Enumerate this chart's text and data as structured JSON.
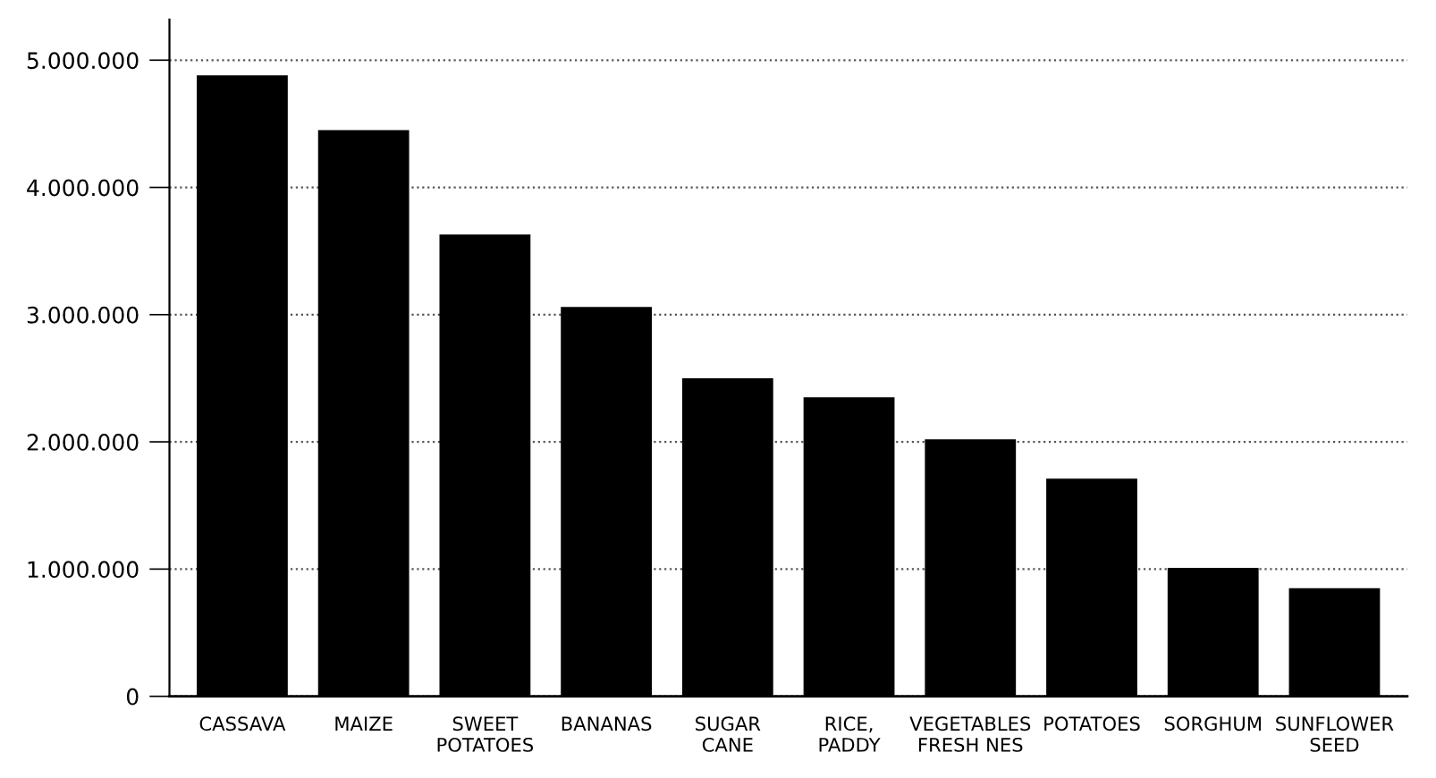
{
  "chart_data": {
    "type": "bar",
    "categories": [
      "CASSAVA",
      "MAIZE",
      "SWEET\nPOTATOES",
      "BANANAS",
      "SUGAR\nCANE",
      "RICE,\nPADDY",
      "VEGETABLES\nFRESH NES",
      "POTATOES",
      "SORGHUM",
      "SUNFLOWER\nSEED"
    ],
    "values": [
      4880000,
      4450000,
      3630000,
      3060000,
      2500000,
      2350000,
      2020000,
      1710000,
      1010000,
      850000
    ],
    "color": "#000000",
    "ylim": [
      0,
      5320000
    ],
    "yticks": [
      0,
      {
        "value": 1000000,
        "label": "1.000.000"
      },
      {
        "value": 2000000,
        "label": "2.000.000"
      },
      {
        "value": 3000000,
        "label": "3.000.000"
      },
      {
        "value": 4000000,
        "label": "4.000.000"
      },
      {
        "value": 5000000,
        "label": "5.000.000"
      }
    ],
    "grid": "y"
  }
}
